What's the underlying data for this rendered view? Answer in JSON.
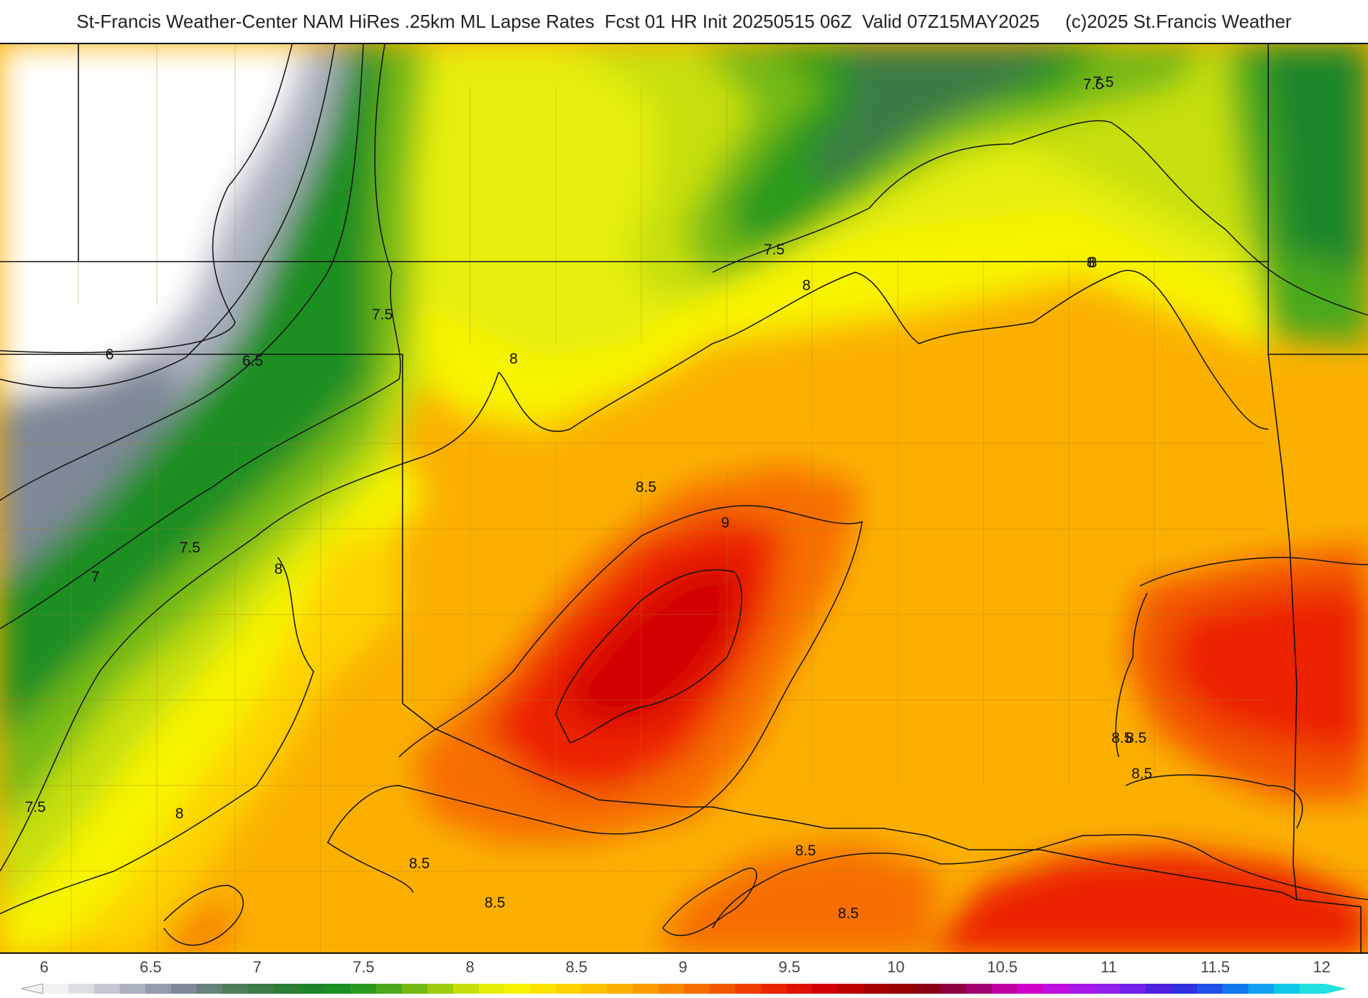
{
  "title": "St-Francis Weather-Center NAM HiRes .25km ML Lapse Rates  Fcst 01 HR Init 20250515 06Z  Valid 07Z15MAY2025     (c)2025 St.Francis Weather",
  "legend": {
    "ticks": [
      "6",
      "6.5",
      "7",
      "7.5",
      "8",
      "8.5",
      "9",
      "9.5",
      "10",
      "10.5",
      "11",
      "11.5",
      "12"
    ],
    "colors": [
      "#f2f2f4",
      "#dcdee4",
      "#c4c8d2",
      "#acb1c0",
      "#959cac",
      "#7f8898",
      "#66827a",
      "#4e7d5a",
      "#3a7a44",
      "#2a7f34",
      "#1e862a",
      "#1a8e22",
      "#2a9a1e",
      "#4aa81a",
      "#74ba14",
      "#a0cc10",
      "#c6df0c",
      "#e6ee08",
      "#f8f400",
      "#fde400",
      "#fdd300",
      "#fcc200",
      "#fbb000",
      "#fa9c00",
      "#f88600",
      "#f66e00",
      "#f35600",
      "#f03c00",
      "#ec2400",
      "#e21000",
      "#d20000",
      "#bc0000",
      "#a80000",
      "#960000",
      "#8a0010",
      "#8e0040",
      "#a00070",
      "#c000a0",
      "#d000c8",
      "#c010e0",
      "#a818e8",
      "#9020ea",
      "#7020e6",
      "#5020e0",
      "#3030e0",
      "#2050e8",
      "#1078f0",
      "#10a0f0",
      "#10c8e8",
      "#20e0e0"
    ]
  },
  "contour_labels": [
    "7.5",
    "7.5",
    "7.5",
    "8",
    "8",
    "8",
    "8",
    "8",
    "6",
    "6.5",
    "7.5",
    "7.5",
    "7",
    "7.5",
    "8",
    "8.5",
    "9",
    "8.5",
    "8.5",
    "8.5",
    "8.5",
    "8.5",
    "8.5",
    "8.5"
  ]
}
